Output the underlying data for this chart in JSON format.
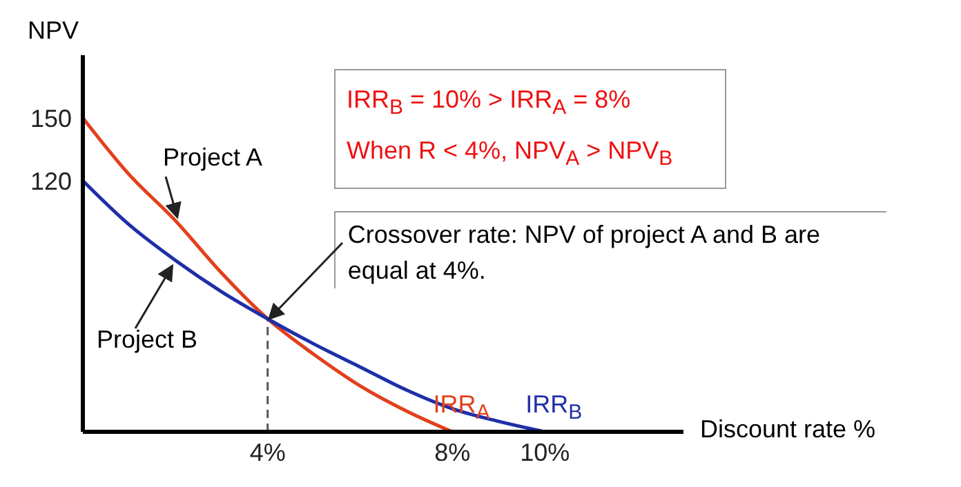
{
  "chart_data": {
    "type": "line",
    "ylabel": "NPV",
    "xlabel": "Discount rate %",
    "xlim": [
      0,
      13
    ],
    "xticks": [
      {
        "value": 4,
        "label": "4%"
      },
      {
        "value": 8,
        "label": "8%"
      },
      {
        "value": 10,
        "label": "10%"
      }
    ],
    "ylim": [
      0,
      180
    ],
    "yticks": [
      120,
      150
    ],
    "series": [
      {
        "name": "Project A",
        "color": "#e2401c",
        "x": [
          0,
          1,
          2,
          3,
          4,
          5,
          6,
          7,
          8
        ],
        "values": [
          150,
          123,
          101,
          76,
          54,
          37,
          22,
          10,
          0
        ]
      },
      {
        "name": "Project B",
        "color": "#1f2fa8",
        "x": [
          0,
          1,
          2,
          3,
          4,
          5,
          6,
          7,
          8,
          9,
          10
        ],
        "values": [
          120,
          99,
          82,
          67,
          54,
          42,
          31,
          20,
          11,
          5,
          0
        ]
      }
    ],
    "ref_lines": [
      {
        "axis": "x",
        "value": 4,
        "line_style": "dashed",
        "color": "#555555"
      }
    ],
    "annotations": [
      "IRR$_{B}$ = 10% > IRR$_{A}$ = 8%",
      "When R < 4%, NPV$_{A}$ > NPV$_{B}$",
      {
        "text": "Crossover rate: NPV of project A and B are equal at 4%.",
        "x": 4,
        "y": 54
      },
      {
        "text": "IRR$_{A}$",
        "x": 8,
        "y": 0
      },
      {
        "text": "IRR$_{B}$",
        "x": 10,
        "y": 0
      }
    ]
  }
}
